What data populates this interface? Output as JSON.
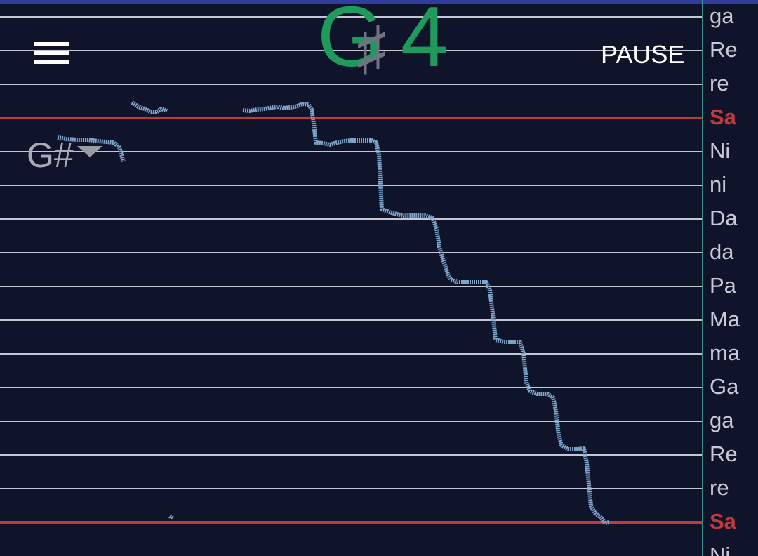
{
  "header": {
    "menu_icon": "hamburger-menu-icon",
    "note_letter": "G",
    "note_accidental": "♯",
    "note_octave": "4",
    "pause_label": "PAUSE"
  },
  "key_selector": {
    "label": "G#",
    "icon": "caret-down-icon"
  },
  "scale_labels": [
    "ga",
    "Re",
    "re",
    "Sa",
    "Ni",
    "ni",
    "Da",
    "da",
    "Pa",
    "Ma",
    "ma",
    "Ga",
    "ga",
    "Re",
    "re",
    "Sa",
    "Ni"
  ],
  "tonic_labels": [
    "Sa"
  ],
  "colors": {
    "background": "#10142a",
    "grid_line": "#c4c7d3",
    "tonic_line": "#c0393b",
    "pitch_trace": "#7fa6cc",
    "note_display": "#1f9a5c",
    "accent_bar": "#2f3e9e",
    "divider": "#3a8f86"
  }
}
